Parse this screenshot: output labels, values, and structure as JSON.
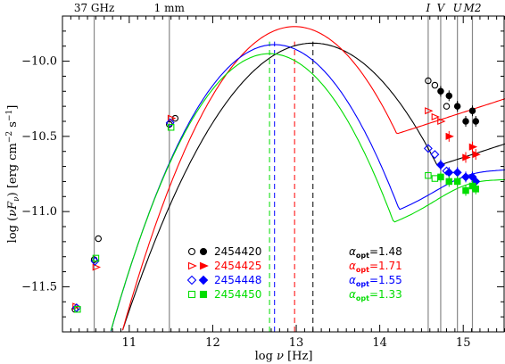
{
  "chart_data": {
    "type": "scatter",
    "title": "",
    "xlabel": "log ν [Hz]",
    "ylabel": "log (νFν) [erg cm⁻² s⁻¹]",
    "ylabel_parts": {
      "left": "log (",
      "nu": "ν",
      "F": "F",
      "sub": "ν",
      "right": ") [erg cm",
      "exp1": "−2",
      "mid": " s",
      "exp2": "−1",
      "end": "]"
    },
    "xlabel_parts": {
      "left": "log ",
      "nu": "ν",
      "right": " [Hz]"
    },
    "xlim": [
      10.2,
      15.5
    ],
    "ylim": [
      -11.8,
      -9.7
    ],
    "x_ticks": [
      11,
      12,
      13,
      14,
      15
    ],
    "y_ticks": [
      -11.5,
      -11.0,
      -10.5,
      -10.0
    ],
    "x_tick_labels": [
      "11",
      "12",
      "13",
      "14",
      "15"
    ],
    "y_tick_labels": [
      "−11.5",
      "−11.0",
      "−10.5",
      "−10.0"
    ],
    "reference_lines": [
      {
        "x": 10.58,
        "label": "37 GHz"
      },
      {
        "x": 11.48,
        "label": "1 mm"
      },
      {
        "x": 14.58,
        "label": "I"
      },
      {
        "x": 14.73,
        "label": "V"
      },
      {
        "x": 14.93,
        "label": "U"
      },
      {
        "x": 15.11,
        "label": "M2"
      }
    ],
    "peak_markers": [
      {
        "x": 13.2,
        "color": "#000000"
      },
      {
        "x": 12.98,
        "color": "#ff0000"
      },
      {
        "x": 12.74,
        "color": "#0000ff"
      },
      {
        "x": 12.68,
        "color": "#00dd00"
      }
    ],
    "series": [
      {
        "name": "2454420",
        "color": "#000000",
        "alpha_label": "α",
        "alpha_sub": "opt",
        "alpha_value": "=1.48",
        "open_symbol": "circle",
        "filled_symbol": "circle",
        "curve": {
          "peak_x": 13.2,
          "peak_y": -9.88,
          "width": 1.65,
          "hump": [
            15.5,
            -10.55,
            0.6,
            0.0
          ]
        },
        "open_points": [
          [
            10.35,
            -11.65
          ],
          [
            10.58,
            -11.32
          ],
          [
            10.63,
            -11.18
          ],
          [
            11.48,
            -10.42
          ],
          [
            11.55,
            -10.38
          ],
          [
            14.58,
            -10.13
          ],
          [
            14.66,
            -10.16
          ],
          [
            14.8,
            -10.3
          ]
        ],
        "filled_points": [
          [
            14.73,
            -10.2
          ],
          [
            14.83,
            -10.23
          ],
          [
            14.93,
            -10.3
          ],
          [
            15.03,
            -10.4
          ],
          [
            15.11,
            -10.33
          ],
          [
            15.15,
            -10.4
          ]
        ]
      },
      {
        "name": "2454425",
        "color": "#ff0000",
        "alpha_label": "α",
        "alpha_sub": "opt",
        "alpha_value": "=1.71",
        "open_symbol": "triangle-right",
        "filled_symbol": "triangle-right",
        "curve": {
          "peak_x": 12.98,
          "peak_y": -9.77,
          "width": 1.45,
          "hump": [
            15.5,
            -10.25,
            0.45,
            0.0
          ]
        },
        "open_points": [
          [
            10.36,
            -11.63
          ],
          [
            10.6,
            -11.37
          ],
          [
            11.5,
            -10.38
          ],
          [
            14.58,
            -10.33
          ],
          [
            14.66,
            -10.37
          ],
          [
            14.73,
            -10.4
          ]
        ],
        "filled_points": [
          [
            14.83,
            -10.5
          ],
          [
            15.03,
            -10.64
          ],
          [
            15.11,
            -10.57
          ],
          [
            15.15,
            -10.62
          ]
        ]
      },
      {
        "name": "2454448",
        "color": "#0000ff",
        "alpha_label": "α",
        "alpha_sub": "opt",
        "alpha_value": "=1.55",
        "open_symbol": "diamond",
        "filled_symbol": "diamond",
        "curve": {
          "peak_x": 12.74,
          "peak_y": -9.89,
          "width": 1.42,
          "hump": [
            15.05,
            -10.85,
            0.55,
            0.09
          ]
        },
        "open_points": [
          [
            10.37,
            -11.64
          ],
          [
            10.59,
            -11.33
          ],
          [
            11.49,
            -10.41
          ],
          [
            14.58,
            -10.58
          ],
          [
            14.66,
            -10.62
          ],
          [
            14.8,
            -10.73
          ]
        ],
        "filled_points": [
          [
            14.73,
            -10.69
          ],
          [
            14.83,
            -10.74
          ],
          [
            14.93,
            -10.74
          ],
          [
            15.03,
            -10.77
          ],
          [
            15.11,
            -10.77
          ],
          [
            15.15,
            -10.8
          ]
        ]
      },
      {
        "name": "2454450",
        "color": "#00dd00",
        "alpha_label": "α",
        "alpha_sub": "opt",
        "alpha_value": "=1.33",
        "open_symbol": "square",
        "filled_symbol": "square",
        "curve": {
          "peak_x": 12.68,
          "peak_y": -9.95,
          "width": 1.4,
          "hump": [
            15.05,
            -10.92,
            0.55,
            0.1
          ]
        },
        "open_points": [
          [
            10.38,
            -11.65
          ],
          [
            10.6,
            -11.31
          ],
          [
            11.5,
            -10.44
          ],
          [
            14.58,
            -10.76
          ],
          [
            14.66,
            -10.78
          ]
        ],
        "filled_points": [
          [
            14.73,
            -10.77
          ],
          [
            14.83,
            -10.8
          ],
          [
            14.93,
            -10.8
          ],
          [
            15.03,
            -10.86
          ],
          [
            15.11,
            -10.83
          ],
          [
            15.15,
            -10.85
          ]
        ]
      }
    ]
  }
}
